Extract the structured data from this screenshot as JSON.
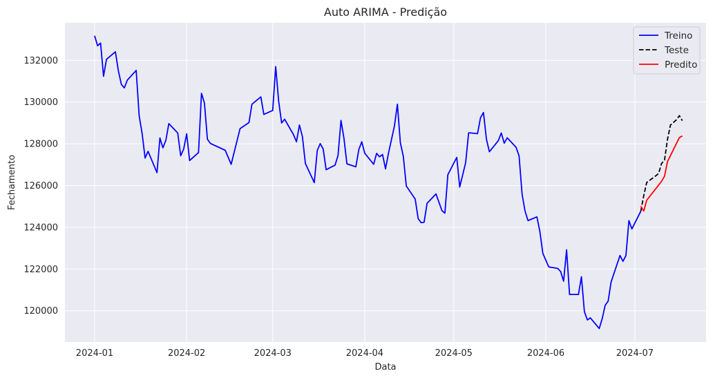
{
  "chart_data": {
    "type": "line",
    "title": "Auto ARIMA - Predição",
    "xlabel": "Data",
    "ylabel": "Fechamento",
    "xlim": [
      "2023-12-22",
      "2024-07-25"
    ],
    "ylim": [
      118500,
      133800
    ],
    "grid": true,
    "legend_position": "top-right",
    "x_ticks": [
      {
        "date": "2024-01-01",
        "label": "2024-01"
      },
      {
        "date": "2024-02-01",
        "label": "2024-02"
      },
      {
        "date": "2024-03-01",
        "label": "2024-03"
      },
      {
        "date": "2024-04-01",
        "label": "2024-04"
      },
      {
        "date": "2024-05-01",
        "label": "2024-05"
      },
      {
        "date": "2024-06-01",
        "label": "2024-06"
      },
      {
        "date": "2024-07-01",
        "label": "2024-07"
      }
    ],
    "y_ticks": [
      {
        "value": 120000,
        "label": "120000"
      },
      {
        "value": 122000,
        "label": "122000"
      },
      {
        "value": 124000,
        "label": "124000"
      },
      {
        "value": 126000,
        "label": "126000"
      },
      {
        "value": 128000,
        "label": "128000"
      },
      {
        "value": 130000,
        "label": "130000"
      },
      {
        "value": 132000,
        "label": "132000"
      }
    ],
    "series": [
      {
        "name": "Treino",
        "color": "#0000ff",
        "style": "solid",
        "points": [
          [
            "2024-01-01",
            133180
          ],
          [
            "2024-01-02",
            132700
          ],
          [
            "2024-01-03",
            132830
          ],
          [
            "2024-01-04",
            131240
          ],
          [
            "2024-01-05",
            132050
          ],
          [
            "2024-01-08",
            132410
          ],
          [
            "2024-01-09",
            131500
          ],
          [
            "2024-01-10",
            130850
          ],
          [
            "2024-01-11",
            130680
          ],
          [
            "2024-01-12",
            131050
          ],
          [
            "2024-01-15",
            131520
          ],
          [
            "2024-01-16",
            129350
          ],
          [
            "2024-01-17",
            128500
          ],
          [
            "2024-01-18",
            127320
          ],
          [
            "2024-01-19",
            127640
          ],
          [
            "2024-01-22",
            126620
          ],
          [
            "2024-01-23",
            128280
          ],
          [
            "2024-01-24",
            127810
          ],
          [
            "2024-01-25",
            128170
          ],
          [
            "2024-01-26",
            128970
          ],
          [
            "2024-01-29",
            128520
          ],
          [
            "2024-01-30",
            127430
          ],
          [
            "2024-01-31",
            127750
          ],
          [
            "2024-02-01",
            128480
          ],
          [
            "2024-02-02",
            127200
          ],
          [
            "2024-02-05",
            127580
          ],
          [
            "2024-02-06",
            130420
          ],
          [
            "2024-02-07",
            129950
          ],
          [
            "2024-02-08",
            128220
          ],
          [
            "2024-02-09",
            128020
          ],
          [
            "2024-02-14",
            127690
          ],
          [
            "2024-02-16",
            127020
          ],
          [
            "2024-02-19",
            128730
          ],
          [
            "2024-02-22",
            129020
          ],
          [
            "2024-02-23",
            129900
          ],
          [
            "2024-02-26",
            130250
          ],
          [
            "2024-02-27",
            129410
          ],
          [
            "2024-03-01",
            129600
          ],
          [
            "2024-03-02",
            131700
          ],
          [
            "2024-03-03",
            130050
          ],
          [
            "2024-03-04",
            129000
          ],
          [
            "2024-03-05",
            129180
          ],
          [
            "2024-03-08",
            128440
          ],
          [
            "2024-03-09",
            128100
          ],
          [
            "2024-03-10",
            128900
          ],
          [
            "2024-03-11",
            128350
          ],
          [
            "2024-03-12",
            127060
          ],
          [
            "2024-03-15",
            126140
          ],
          [
            "2024-03-16",
            127680
          ],
          [
            "2024-03-17",
            128010
          ],
          [
            "2024-03-18",
            127750
          ],
          [
            "2024-03-19",
            126760
          ],
          [
            "2024-03-22",
            126980
          ],
          [
            "2024-03-23",
            127440
          ],
          [
            "2024-03-24",
            129120
          ],
          [
            "2024-03-25",
            128260
          ],
          [
            "2024-03-26",
            127040
          ],
          [
            "2024-03-29",
            126900
          ],
          [
            "2024-03-30",
            127720
          ],
          [
            "2024-03-31",
            128100
          ],
          [
            "2024-04-01",
            127550
          ],
          [
            "2024-04-04",
            127020
          ],
          [
            "2024-04-05",
            127540
          ],
          [
            "2024-04-06",
            127380
          ],
          [
            "2024-04-07",
            127490
          ],
          [
            "2024-04-08",
            126800
          ],
          [
            "2024-04-09",
            127550
          ],
          [
            "2024-04-11",
            128850
          ],
          [
            "2024-04-12",
            129900
          ],
          [
            "2024-04-13",
            128050
          ],
          [
            "2024-04-14",
            127400
          ],
          [
            "2024-04-15",
            125980
          ],
          [
            "2024-04-18",
            125350
          ],
          [
            "2024-04-19",
            124420
          ],
          [
            "2024-04-20",
            124220
          ],
          [
            "2024-04-21",
            124240
          ],
          [
            "2024-04-22",
            125150
          ],
          [
            "2024-04-25",
            125600
          ],
          [
            "2024-04-27",
            124800
          ],
          [
            "2024-04-28",
            124680
          ],
          [
            "2024-04-29",
            126520
          ],
          [
            "2024-05-02",
            127350
          ],
          [
            "2024-05-03",
            125930
          ],
          [
            "2024-05-05",
            127100
          ],
          [
            "2024-05-06",
            128530
          ],
          [
            "2024-05-09",
            128490
          ],
          [
            "2024-05-10",
            129250
          ],
          [
            "2024-05-11",
            129500
          ],
          [
            "2024-05-12",
            128220
          ],
          [
            "2024-05-13",
            127620
          ],
          [
            "2024-05-16",
            128150
          ],
          [
            "2024-05-17",
            128520
          ],
          [
            "2024-05-18",
            128030
          ],
          [
            "2024-05-19",
            128290
          ],
          [
            "2024-05-22",
            127830
          ],
          [
            "2024-05-23",
            127420
          ],
          [
            "2024-05-24",
            125600
          ],
          [
            "2024-05-25",
            124780
          ],
          [
            "2024-05-26",
            124320
          ],
          [
            "2024-05-29",
            124500
          ],
          [
            "2024-05-30",
            123800
          ],
          [
            "2024-05-31",
            122750
          ],
          [
            "2024-06-02",
            122100
          ],
          [
            "2024-06-05",
            122030
          ],
          [
            "2024-06-06",
            121880
          ],
          [
            "2024-06-07",
            121420
          ],
          [
            "2024-06-08",
            122920
          ],
          [
            "2024-06-09",
            120780
          ],
          [
            "2024-06-12",
            120780
          ],
          [
            "2024-06-13",
            121630
          ],
          [
            "2024-06-14",
            119960
          ],
          [
            "2024-06-15",
            119560
          ],
          [
            "2024-06-16",
            119660
          ],
          [
            "2024-06-19",
            119150
          ],
          [
            "2024-06-20",
            119620
          ],
          [
            "2024-06-21",
            120260
          ],
          [
            "2024-06-22",
            120460
          ],
          [
            "2024-06-23",
            121380
          ],
          [
            "2024-06-26",
            122650
          ],
          [
            "2024-06-27",
            122370
          ],
          [
            "2024-06-28",
            122650
          ],
          [
            "2024-06-29",
            124320
          ],
          [
            "2024-06-30",
            123920
          ],
          [
            "2024-07-03",
            124770
          ]
        ]
      },
      {
        "name": "Teste",
        "color": "#000000",
        "style": "dashed",
        "points": [
          [
            "2024-07-03",
            124770
          ],
          [
            "2024-07-04",
            125520
          ],
          [
            "2024-07-05",
            126150
          ],
          [
            "2024-07-08",
            126460
          ],
          [
            "2024-07-09",
            126580
          ],
          [
            "2024-07-10",
            127060
          ],
          [
            "2024-07-11",
            127220
          ],
          [
            "2024-07-12",
            128220
          ],
          [
            "2024-07-13",
            128900
          ],
          [
            "2024-07-15",
            129150
          ],
          [
            "2024-07-16",
            129350
          ],
          [
            "2024-07-17",
            129110
          ]
        ]
      },
      {
        "name": "Predito",
        "color": "#ff0000",
        "style": "solid",
        "points": [
          [
            "2024-07-03",
            125010
          ],
          [
            "2024-07-04",
            124780
          ],
          [
            "2024-07-05",
            125300
          ],
          [
            "2024-07-10",
            126200
          ],
          [
            "2024-07-11",
            126450
          ],
          [
            "2024-07-12",
            127150
          ],
          [
            "2024-07-16",
            128300
          ],
          [
            "2024-07-17",
            128380
          ]
        ]
      }
    ]
  }
}
